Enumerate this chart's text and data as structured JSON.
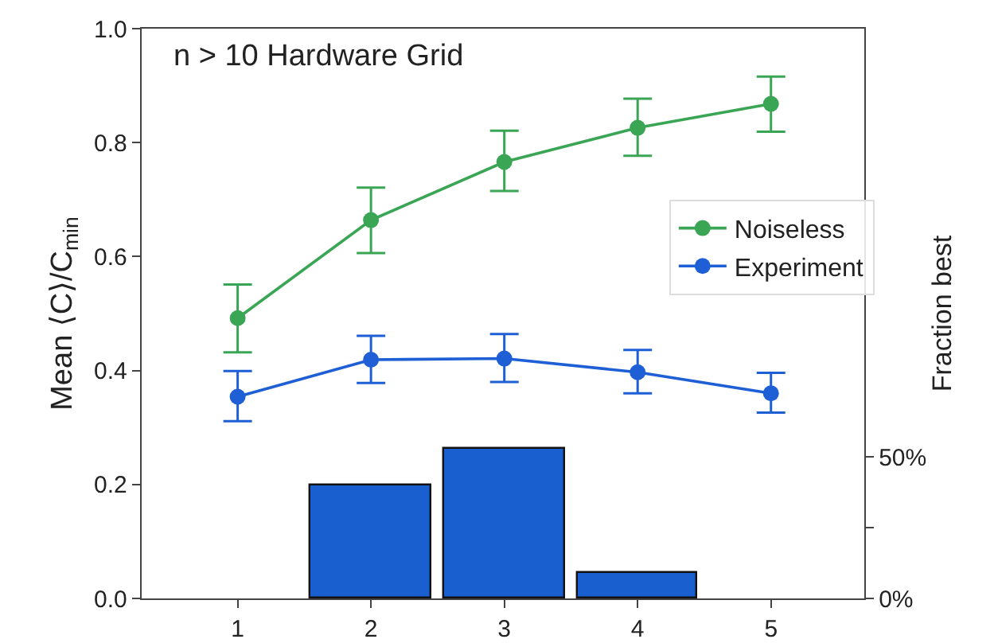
{
  "chart_data": {
    "type": "line",
    "annotations": [
      "n > 10 Hardware Grid"
    ],
    "ylabel": "Mean ⟨C⟩/C$_{min}$",
    "y2label": "Fraction best",
    "x": [
      1,
      2,
      3,
      4,
      5
    ],
    "xlim": [
      0.28,
      5.7
    ],
    "xticks": [
      1,
      2,
      3,
      4,
      5
    ],
    "ylim": [
      0,
      1
    ],
    "yticks": [
      {
        "value": 0,
        "label": "0.0"
      },
      0.2,
      0.4,
      0.6,
      0.8,
      {
        "value": 1,
        "label": "1.0"
      }
    ],
    "y2lim": [
      0,
      201.6
    ],
    "y2ticks": [
      {
        "value": 0,
        "label": "0%"
      },
      {
        "value": 25,
        "label": null
      },
      {
        "value": 50,
        "label": "50%"
      }
    ],
    "marker": "circle",
    "legend": "right",
    "grid": false,
    "series": [
      {
        "name": "Noiseless",
        "color": "#3aa655",
        "values": [
          0.492,
          0.664,
          0.766,
          0.826,
          0.868
        ],
        "errors": [
          [
            0.432,
            0.551
          ],
          [
            0.606,
            0.721
          ],
          [
            0.715,
            0.821
          ],
          [
            0.777,
            0.877
          ],
          [
            0.819,
            0.916
          ]
        ]
      },
      {
        "name": "Experiment",
        "color": "#1f5fd6",
        "values": [
          0.354,
          0.419,
          0.421,
          0.397,
          0.36
        ],
        "errors": [
          [
            0.311,
            0.399
          ],
          [
            0.378,
            0.461
          ],
          [
            0.38,
            0.464
          ],
          [
            0.36,
            0.436
          ],
          [
            0.326,
            0.396
          ]
        ]
      },
      {
        "type": "bar",
        "axis": "y2",
        "color": "#1a5fd0",
        "values": [
          0,
          40,
          53,
          9,
          0
        ]
      }
    ]
  }
}
